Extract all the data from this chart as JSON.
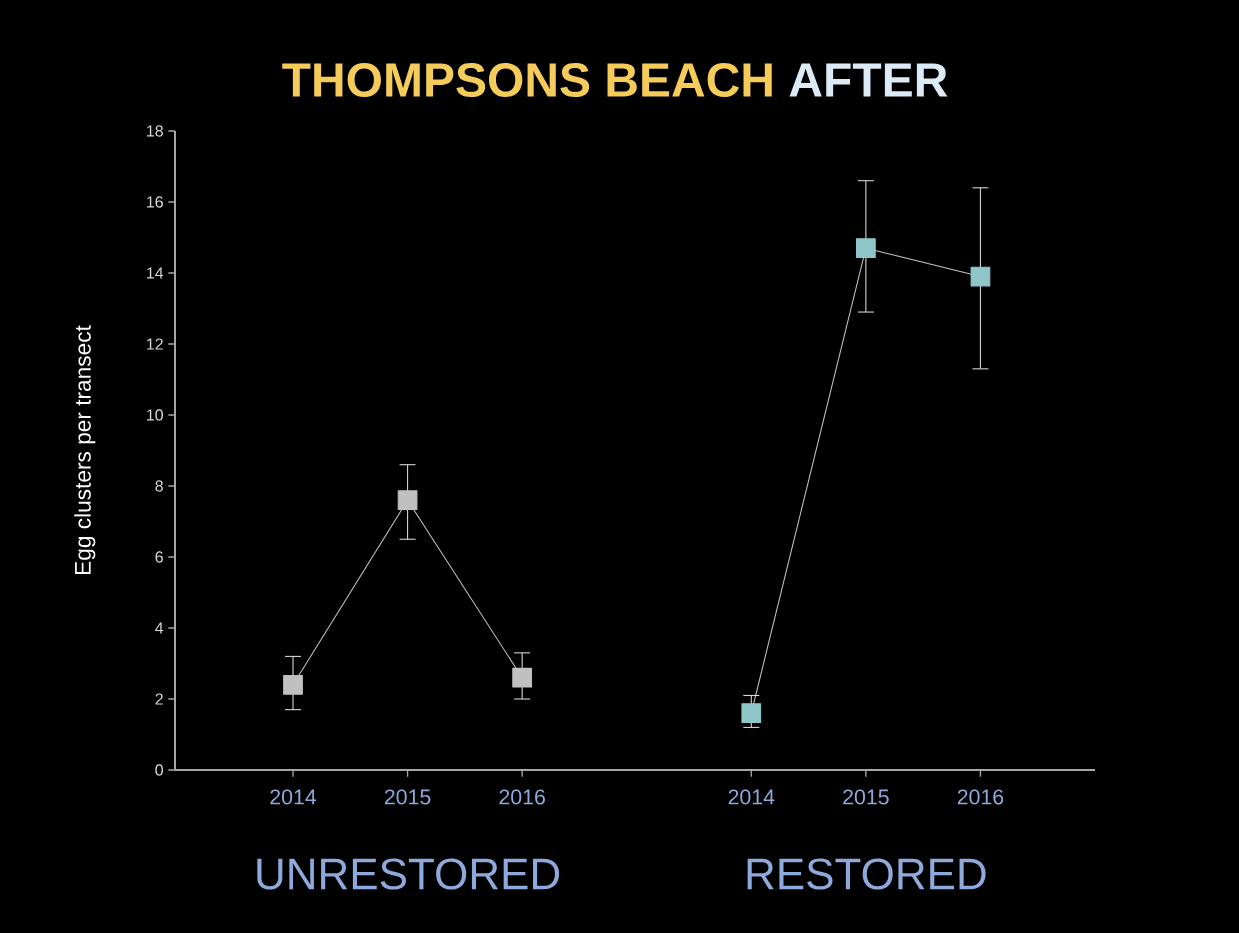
{
  "chart_data": {
    "type": "line",
    "title": "THOMPSONS BEACH",
    "subtitle": "AFTER",
    "ylabel": "Egg clusters per transect",
    "categories": [
      "2014",
      "2015",
      "2016",
      null,
      "2014",
      "2015",
      "2016"
    ],
    "series": [
      {
        "color": "#c0c0c0",
        "values": [
          2.4,
          7.6,
          2.6,
          null,
          null,
          null,
          null
        ],
        "errors": [
          [
            1.7,
            3.2
          ],
          [
            6.5,
            8.6
          ],
          [
            2.0,
            3.3
          ],
          null,
          null,
          null,
          null
        ]
      },
      {
        "color": "#8fc6c9",
        "values": [
          null,
          null,
          null,
          null,
          1.6,
          14.7,
          13.9
        ],
        "errors": [
          null,
          null,
          null,
          null,
          [
            1.2,
            2.1
          ],
          [
            12.9,
            16.6
          ],
          [
            11.3,
            16.4
          ]
        ]
      }
    ],
    "annotations": [
      "UNRESTORED",
      "RESTORED"
    ],
    "ylim": [
      0,
      18
    ],
    "yticks": [
      0,
      2,
      4,
      6,
      8,
      10,
      12,
      14,
      16,
      18
    ],
    "marker": "square",
    "line_style": "solid",
    "grid": false
  }
}
